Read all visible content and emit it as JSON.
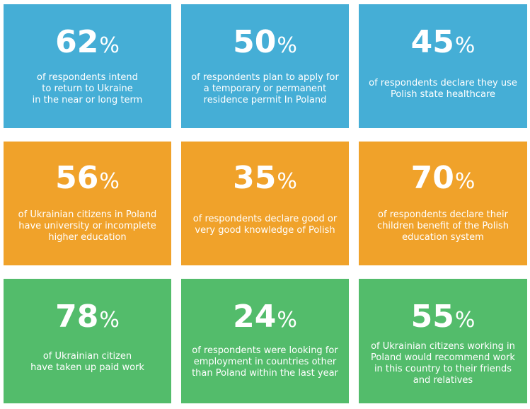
{
  "colors": {
    "blue": "#45aed6",
    "orange": "#f0a22a",
    "green": "#53bc6b"
  },
  "tiles": [
    {
      "value": "62",
      "unit": "%",
      "text": "of respondents intend\nto return to Ukraine\nin the near or long term"
    },
    {
      "value": "50",
      "unit": "%",
      "text": "of respondents plan to apply for\na temporary or permanent\nresidence permit In Poland"
    },
    {
      "value": "45",
      "unit": "%",
      "text": "of respondents declare they use\nPolish state healthcare"
    },
    {
      "value": "56",
      "unit": "%",
      "text": "of Ukrainian citizens in Poland\nhave university or incomplete\nhigher education"
    },
    {
      "value": "35",
      "unit": "%",
      "text": "of respondents declare good or\nvery good knowledge of Polish"
    },
    {
      "value": "70",
      "unit": "%",
      "text": "of respondents declare their\nchildren benefit of the Polish\neducation system"
    },
    {
      "value": "78",
      "unit": "%",
      "text": "of Ukrainian citizen\nhave taken up paid work"
    },
    {
      "value": "24",
      "unit": "%",
      "text": "of respondents were looking for\nemployment in countries other\nthan Poland within the last year"
    },
    {
      "value": "55",
      "unit": "%",
      "text": "of Ukrainian citizens working in\nPoland would recommend work\nin this country to their friends\nand relatives"
    }
  ]
}
